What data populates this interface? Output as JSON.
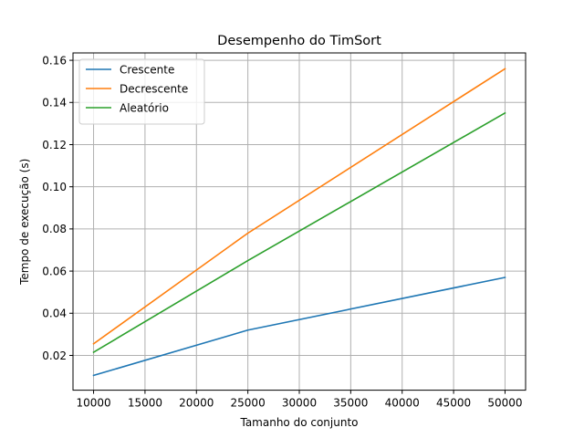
{
  "chart_data": {
    "type": "line",
    "title": "Desempenho do TimSort",
    "xlabel": "Tamanho do conjunto",
    "ylabel": "Tempo de execução (s)",
    "x": [
      10000,
      25000,
      50000
    ],
    "xticks": [
      "10000",
      "15000",
      "20000",
      "25000",
      "30000",
      "35000",
      "40000",
      "45000",
      "50000"
    ],
    "yticks": [
      "0.02",
      "0.04",
      "0.06",
      "0.08",
      "0.10",
      "0.12",
      "0.14",
      "0.16"
    ],
    "xlim": [
      8000,
      52000
    ],
    "ylim": [
      0.0035,
      0.1635
    ],
    "grid": true,
    "legend_position": "top-left",
    "series": [
      {
        "name": "Crescente",
        "color": "#1f77b4",
        "values": [
          0.0105,
          0.032,
          0.057
        ]
      },
      {
        "name": "Decrescente",
        "color": "#ff7f0e",
        "values": [
          0.0255,
          0.078,
          0.156
        ]
      },
      {
        "name": "Aleatório",
        "color": "#2ca02c",
        "values": [
          0.0215,
          0.065,
          0.135
        ]
      }
    ]
  }
}
